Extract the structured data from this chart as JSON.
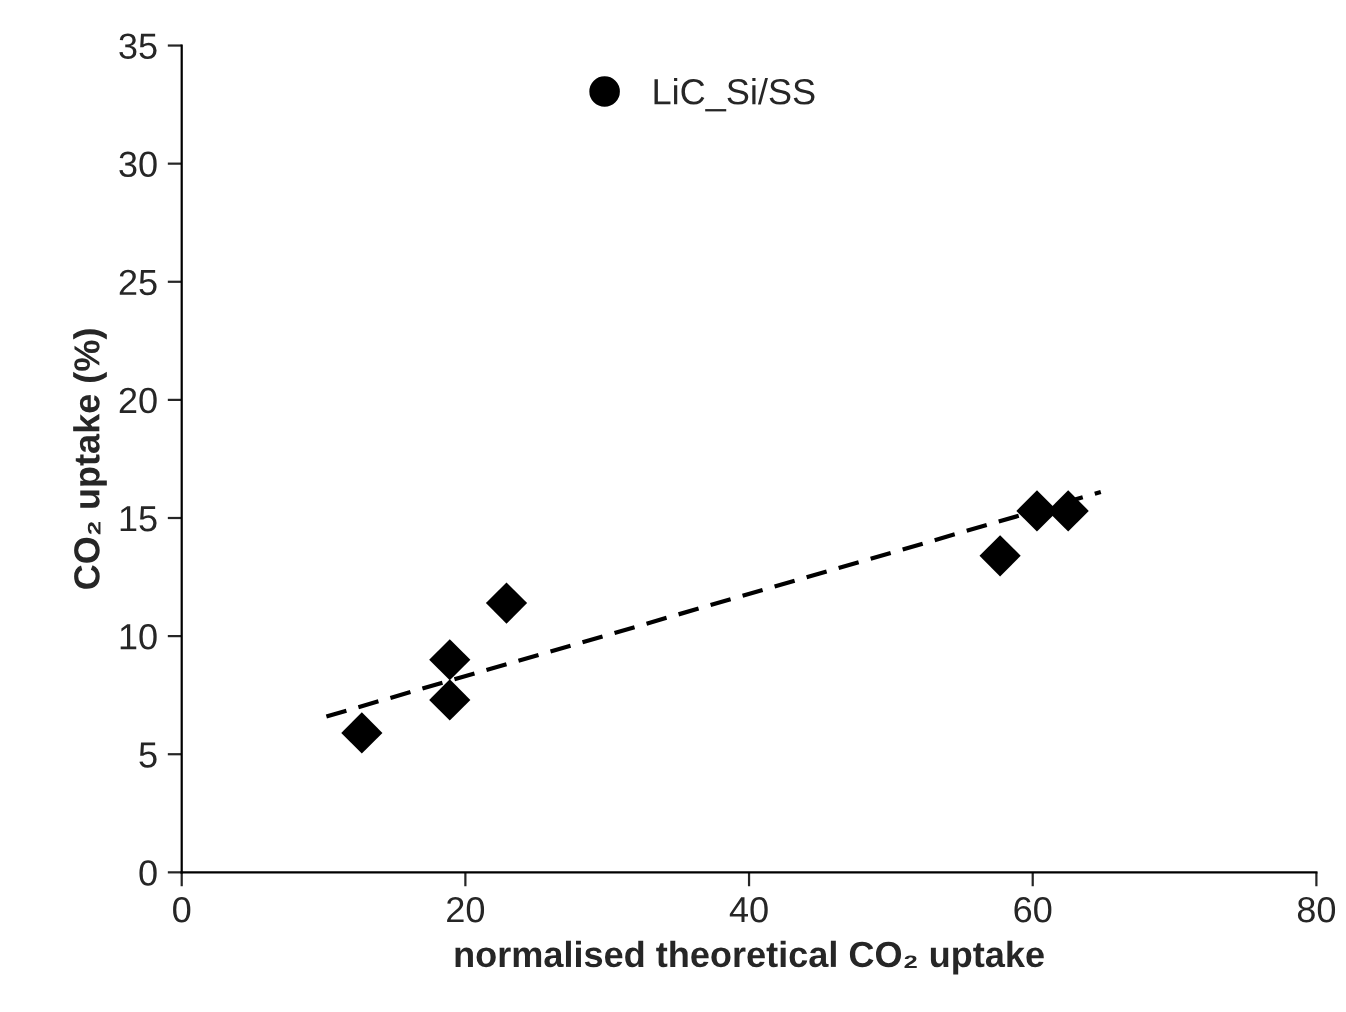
{
  "chart_data": {
    "type": "scatter",
    "xlabel": "normalised theoretical CO₂ uptake",
    "ylabel": "CO₂ uptake (%)",
    "xlim": [
      0,
      80
    ],
    "xticks": [
      0,
      20,
      40,
      60,
      80
    ],
    "ylim": [
      0,
      35
    ],
    "yticks": [
      0,
      5,
      10,
      15,
      20,
      25,
      30,
      35
    ],
    "grid": false,
    "legend": "top",
    "marker": "diamond",
    "series": [
      {
        "name": "LiC_Si/SS",
        "color": "#000000",
        "x": [
          12.7,
          18.9,
          18.9,
          22.9,
          57.7,
          60.3,
          62.5
        ],
        "values": [
          5.9,
          9.0,
          7.3,
          11.4,
          13.4,
          15.3,
          15.3
        ]
      },
      {
        "type": "line",
        "color": "#000000",
        "line_style": "dashed",
        "marker": "none",
        "x": [
          10.2,
          64.8
        ],
        "values": [
          6.6,
          16.1
        ]
      }
    ]
  }
}
